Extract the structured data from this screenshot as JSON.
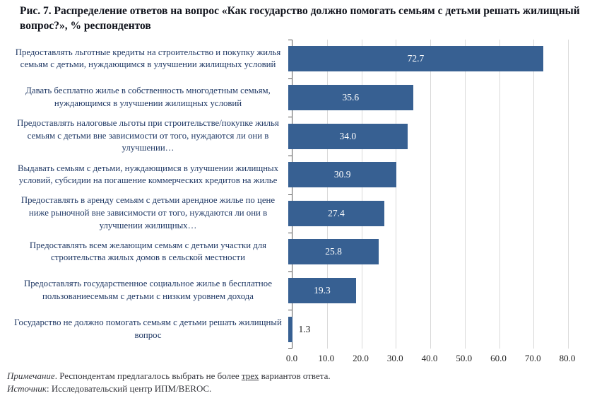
{
  "title": "Рис. 7. Распределение ответов на вопрос «Как государство должно помогать семьям с детьми решать жилищный вопрос?», % респондентов",
  "chart_data": {
    "type": "bar",
    "orientation": "horizontal",
    "title": "Рис. 7. Распределение ответов на вопрос «Как государство должно помогать семьям с детьми решать жилищный вопрос?», % респондентов",
    "categories": [
      "Предоставлять льготные кредиты на строительство и покупку жилья семьям с детьми, нуждающимся в улучшении жилищных условий",
      "Давать бесплатно жилье в собственность многодетным семьям, нуждающимся в улучшении жилищных условий",
      "Предоставлять налоговые льготы при строительстве/покупке жилья семьям с детьми вне зависимости от того, нуждаются ли они в улучшении…",
      "Выдавать семьям с детьми, нуждающимся в улучшении жилищных условий, субсидии на погашение коммерческих кредитов на жилье",
      "Предоставлять в аренду семьям с детьми арендное жилье по цене ниже рыночной вне зависимости от того, нуждаются ли они в улучшении жилищных…",
      "Предоставлять всем желающим семьям с детьми участки для строительства жилых домов в сельской местности",
      "Предоставлять государственное социальное жилье в бесплатное пользованиесемьям с детьми с низким уровнем дохода",
      "Государство не должно помогать семьям с детьми решать жилищный вопрос"
    ],
    "values": [
      72.7,
      35.6,
      34.0,
      30.9,
      27.4,
      25.8,
      19.3,
      1.3
    ],
    "value_labels": [
      "72.7",
      "35.6",
      "34.0",
      "30.9",
      "27.4",
      "25.8",
      "19.3",
      "1.3"
    ],
    "xlim": [
      0,
      80
    ],
    "x_ticks": [
      "0.0",
      "10.0",
      "20.0",
      "30.0",
      "40.0",
      "50.0",
      "60.0",
      "70.0",
      "80.0"
    ],
    "xlabel": "",
    "ylabel": "",
    "grid": true,
    "legend_position": "none",
    "bar_color": "#376092",
    "category_label_color": "#1f3864",
    "value_label_color_inside": "#ffffff",
    "value_label_color_outside": "#1a1a1a",
    "gridline_color": "#d9d9d9",
    "axis_color": "#595959",
    "outside_label_threshold": 5
  },
  "notes": {
    "note_label": "Примечание",
    "note_pre": ". Респондентам предлагалось выбрать не более ",
    "note_underlined": "трех",
    "note_post": " вариантов ответа.",
    "source_label": "Источник",
    "source_text": ": Исследовательский центр ИПМ/BEROC."
  }
}
